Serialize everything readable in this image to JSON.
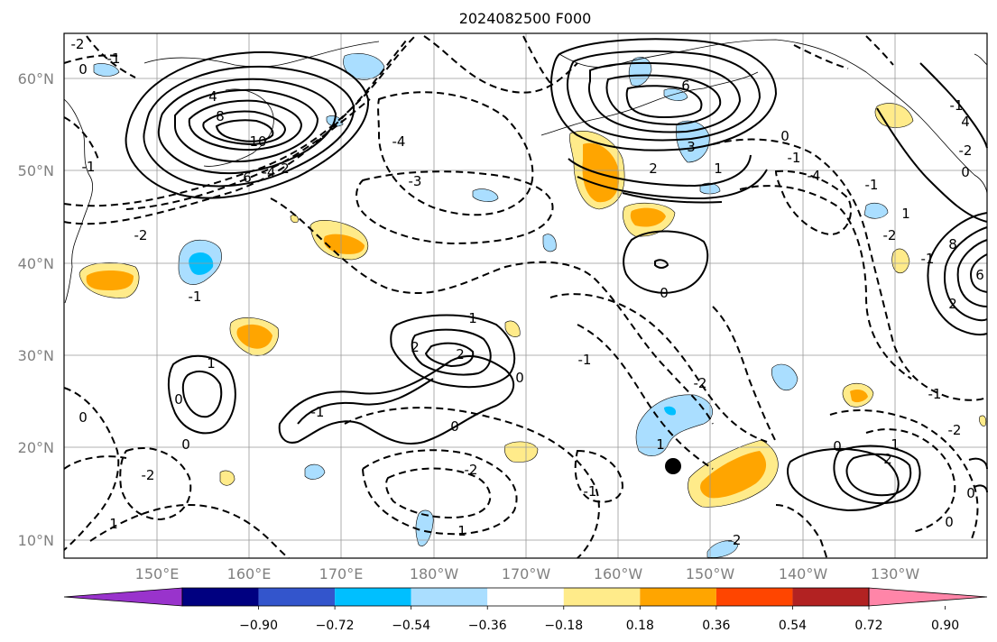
{
  "title": "2024082500 F000",
  "lat_labels": [
    "60°N",
    "50°N",
    "40°N",
    "30°N",
    "20°N",
    "10°N"
  ],
  "lon_labels": [
    "150°E",
    "160°E",
    "170°E",
    "180°W",
    "170°W",
    "160°W",
    "150°W",
    "140°W",
    "130°W"
  ],
  "contour_labels": [
    "-2",
    "-1",
    "0",
    "4",
    "8",
    "10",
    "6",
    "2",
    "-4",
    "-3",
    "-1",
    "-2",
    "-1",
    "-1",
    "1",
    "2",
    "1",
    "0",
    "-4",
    "6",
    "3",
    "2",
    "1",
    "0",
    "-1",
    "-2",
    "-4",
    "1",
    "-1",
    "-2",
    "4",
    "0",
    "8",
    "6",
    "2",
    "0",
    "-1",
    "-2",
    "-1",
    "1",
    "0",
    "0",
    "-2",
    "1",
    "0",
    "0",
    "-2",
    "1",
    "0",
    "2",
    "0",
    "-1",
    "-2",
    "1",
    "2",
    "0",
    "-1",
    "-2",
    "-1"
  ],
  "colorbar": {
    "colors": [
      "#9933cc",
      "#000080",
      "#3355cc",
      "#00bfff",
      "#aadeff",
      "#ffffff",
      "#ffeb8a",
      "#ffa500",
      "#ff4500",
      "#b22222",
      "#ff85a8"
    ],
    "tick_labels": [
      "−0.90",
      "−0.72",
      "−0.54",
      "−0.36",
      "−0.18",
      "0.18",
      "0.36",
      "0.54",
      "0.72",
      "0.90"
    ]
  },
  "storm_marker": {
    "lon": -153.8,
    "lat": 18.0
  }
}
